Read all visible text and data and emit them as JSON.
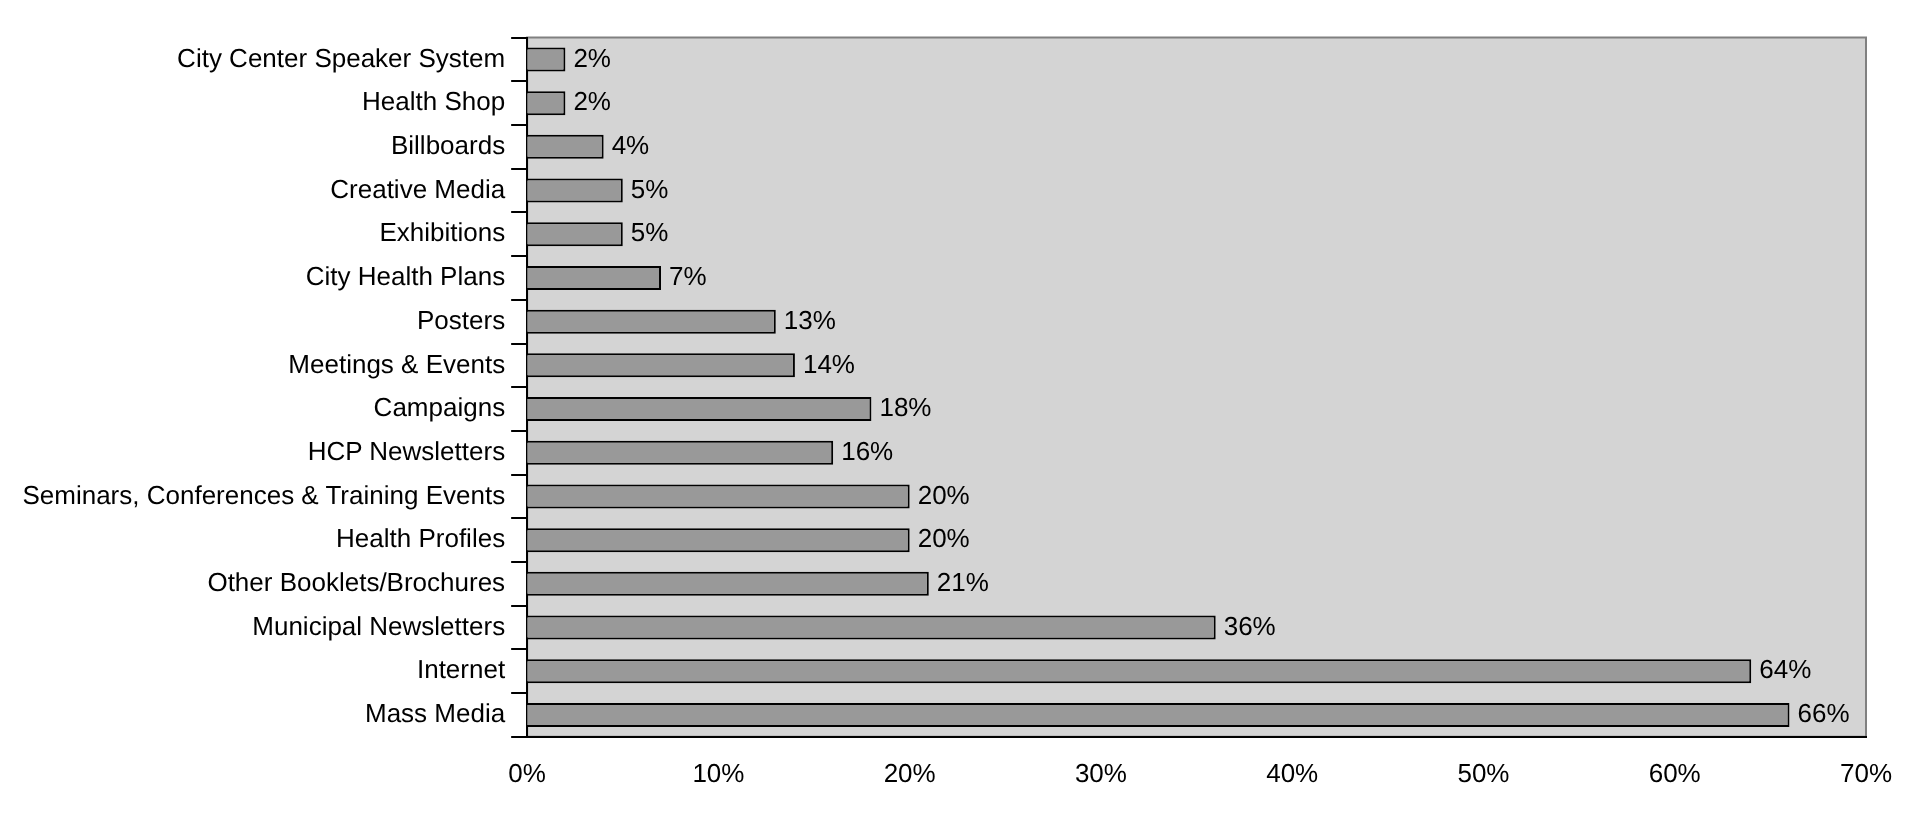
{
  "chart_data": {
    "type": "bar",
    "orientation": "horizontal",
    "categories": [
      "City Center Speaker System",
      "Health Shop",
      "Billboards",
      "Creative Media",
      "Exhibitions",
      "City Health Plans",
      "Posters",
      "Meetings & Events",
      "Campaigns",
      "HCP Newsletters",
      "Seminars, Conferences & Training Events",
      "Health Profiles",
      "Other Booklets/Brochures",
      "Municipal Newsletters",
      "Internet",
      "Mass Media"
    ],
    "values": [
      2,
      2,
      4,
      5,
      5,
      7,
      13,
      14,
      18,
      16,
      20,
      20,
      21,
      36,
      64,
      66
    ],
    "value_labels": [
      "2%",
      "2%",
      "4%",
      "5%",
      "5%",
      "7%",
      "13%",
      "14%",
      "18%",
      "16%",
      "20%",
      "20%",
      "21%",
      "36%",
      "64%",
      "66%"
    ],
    "color": "#999999",
    "xlim": [
      0,
      70
    ],
    "xticks": [
      {
        "value": 0,
        "label": "0%"
      },
      {
        "value": 10,
        "label": "10%"
      },
      {
        "value": 20,
        "label": "20%"
      },
      {
        "value": 30,
        "label": "30%"
      },
      {
        "value": 40,
        "label": "40%"
      },
      {
        "value": 50,
        "label": "50%"
      },
      {
        "value": 60,
        "label": "60%"
      },
      {
        "value": 70,
        "label": "70%"
      }
    ],
    "grid": false,
    "legend": false
  }
}
